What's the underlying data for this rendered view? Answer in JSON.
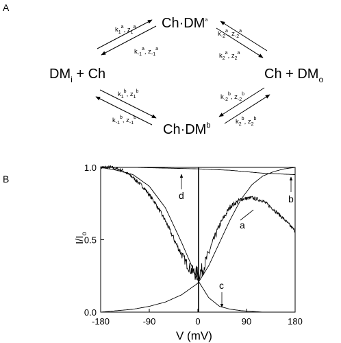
{
  "panel_a": {
    "label": "A",
    "species": {
      "top": {
        "base": "Ch·DM",
        "sup": "a"
      },
      "bottom": {
        "base": "Ch·DM",
        "sup": "b"
      },
      "left": {
        "base": "DM",
        "sub": "i",
        "rest": " + Ch"
      },
      "right": {
        "pre": "Ch + DM",
        "sub": "o"
      }
    },
    "rates": {
      "ul_fwd": [
        "k",
        "1",
        "a",
        ", z",
        "1",
        "a"
      ],
      "ul_rev": [
        "k",
        "-1",
        "a",
        ", z",
        "-1",
        "a"
      ],
      "ur_fwd": [
        "k",
        "-2",
        "a",
        ", z",
        "-2",
        "a"
      ],
      "ur_rev": [
        "k",
        "2",
        "a",
        ", z",
        "2",
        "a"
      ],
      "ll_fwd": [
        "k",
        "1",
        "b",
        ", z",
        "1",
        "b"
      ],
      "ll_rev": [
        "k",
        "-1",
        "b",
        ", z",
        "-1",
        "b"
      ],
      "lr_fwd": [
        "k",
        "-2",
        "b",
        ", z",
        "-2",
        "b"
      ],
      "lr_rev": [
        "k",
        "2",
        "b",
        ", z",
        "2",
        "b"
      ]
    }
  },
  "panel_b": {
    "label": "B",
    "curve_labels": [
      "a",
      "b",
      "c",
      "d"
    ]
  },
  "chart_data": {
    "type": "line",
    "xlabel": "V (mV)",
    "ylabel": "I/Io",
    "xlim": [
      -180,
      180
    ],
    "ylim": [
      0,
      1.0
    ],
    "x_ticks": [
      "-180",
      "-90",
      "0",
      "90",
      "180"
    ],
    "y_ticks": [
      "0.0",
      "0.5",
      "1.0"
    ],
    "series": [
      {
        "name": "a",
        "style": "noisy",
        "x": [
          -180,
          -160,
          -140,
          -120,
          -100,
          -80,
          -60,
          -40,
          -20,
          -10,
          0,
          10,
          20,
          40,
          60,
          80,
          100,
          120,
          140,
          160,
          180
        ],
        "y": [
          1.0,
          1.0,
          0.98,
          0.93,
          0.86,
          0.76,
          0.63,
          0.47,
          0.33,
          0.28,
          0.26,
          0.3,
          0.41,
          0.6,
          0.73,
          0.78,
          0.79,
          0.77,
          0.71,
          0.64,
          0.56
        ]
      },
      {
        "name": "b",
        "style": "smooth",
        "x": [
          -180,
          -150,
          -120,
          -90,
          -60,
          -30,
          0,
          20,
          40,
          60,
          80,
          100,
          120,
          140,
          160,
          180
        ],
        "y": [
          0.0,
          0.01,
          0.02,
          0.04,
          0.07,
          0.12,
          0.2,
          0.32,
          0.48,
          0.64,
          0.78,
          0.88,
          0.94,
          0.97,
          0.99,
          1.0
        ]
      },
      {
        "name": "c",
        "style": "smooth",
        "x": [
          -180,
          -150,
          -120,
          -90,
          -60,
          -30,
          0,
          20,
          40,
          60,
          80,
          100,
          120,
          150,
          180
        ],
        "y": [
          1.0,
          0.98,
          0.95,
          0.87,
          0.72,
          0.48,
          0.22,
          0.1,
          0.04,
          0.02,
          0.01,
          0.005,
          0.0,
          0.0,
          0.0
        ]
      },
      {
        "name": "d",
        "style": "smooth",
        "x": [
          -180,
          -120,
          -60,
          0,
          60,
          120,
          180
        ],
        "y": [
          1.0,
          1.0,
          0.995,
          0.99,
          0.98,
          0.96,
          0.95
        ]
      }
    ]
  }
}
